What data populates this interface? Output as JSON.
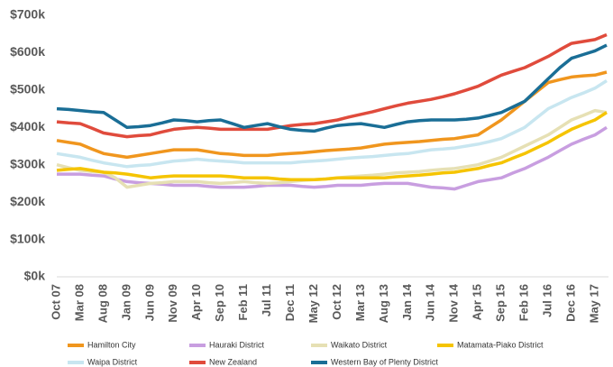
{
  "chart_data": {
    "type": "line",
    "categories": [
      "Oct 07",
      null,
      "Mar 08",
      null,
      "Aug 08",
      null,
      "Jan 09",
      null,
      "Jun 09",
      null,
      "Nov 09",
      null,
      "Apr 10",
      null,
      "Sep 10",
      null,
      "Feb 11",
      null,
      "Jul 11",
      null,
      "Dec 11",
      null,
      "May 12",
      null,
      "Oct 12",
      null,
      "Mar 13",
      null,
      "Aug 13",
      null,
      "Jan 14",
      null,
      "Jun 14",
      null,
      "Nov 14",
      null,
      "Apr 15",
      null,
      "Sep 15",
      null,
      "Feb 16",
      null,
      "Jul 16",
      null,
      "Dec 16",
      null,
      "May 17",
      null
    ],
    "ylim": [
      0,
      700
    ],
    "yticks": [
      {
        "value": 0,
        "label": "$0k"
      },
      {
        "value": 100,
        "label": "$100k"
      },
      {
        "value": 200,
        "label": "$200k"
      },
      {
        "value": 300,
        "label": "$300k"
      },
      {
        "value": 400,
        "label": "$400k"
      },
      {
        "value": 500,
        "label": "$500k"
      },
      {
        "value": 600,
        "label": "$600k"
      },
      {
        "value": 700,
        "label": "$700k"
      }
    ],
    "grid": false,
    "series": [
      {
        "name": "Hamilton City",
        "color": "#f0961e",
        "values": [
          365,
          360,
          355,
          342,
          330,
          325,
          320,
          325,
          330,
          335,
          340,
          340,
          340,
          335,
          330,
          328,
          325,
          325,
          325,
          328,
          330,
          332,
          335,
          338,
          340,
          342,
          345,
          350,
          355,
          358,
          360,
          362,
          365,
          368,
          370,
          375,
          380,
          400,
          420,
          445,
          470,
          495,
          520,
          528,
          535,
          538,
          540,
          548
        ]
      },
      {
        "name": "Hauraki District",
        "color": "#c89ee0",
        "values": [
          275,
          275,
          275,
          272,
          270,
          262,
          255,
          252,
          250,
          248,
          245,
          245,
          245,
          242,
          240,
          240,
          240,
          242,
          245,
          245,
          245,
          242,
          240,
          242,
          245,
          245,
          245,
          248,
          250,
          250,
          250,
          245,
          240,
          238,
          235,
          245,
          255,
          260,
          265,
          278,
          290,
          305,
          320,
          338,
          355,
          368,
          380,
          400
        ]
      },
      {
        "name": "Waikato District",
        "color": "#e6e0b4",
        "values": [
          300,
          292,
          285,
          282,
          280,
          265,
          240,
          245,
          250,
          252,
          255,
          255,
          255,
          252,
          250,
          252,
          255,
          252,
          250,
          252,
          255,
          258,
          260,
          262,
          265,
          268,
          270,
          272,
          275,
          278,
          280,
          282,
          285,
          288,
          290,
          295,
          300,
          310,
          320,
          335,
          350,
          365,
          380,
          400,
          420,
          432,
          445,
          440
        ]
      },
      {
        "name": "Matamata-Piako District",
        "color": "#f5c400",
        "values": [
          285,
          288,
          290,
          285,
          280,
          278,
          275,
          270,
          265,
          268,
          270,
          270,
          270,
          270,
          270,
          268,
          265,
          265,
          265,
          262,
          260,
          260,
          260,
          262,
          265,
          265,
          265,
          265,
          265,
          268,
          270,
          272,
          275,
          278,
          280,
          285,
          290,
          298,
          305,
          318,
          330,
          345,
          360,
          378,
          395,
          408,
          420,
          440
        ]
      },
      {
        "name": "Waipa District",
        "color": "#c8e6f0",
        "values": [
          330,
          325,
          320,
          312,
          305,
          300,
          295,
          298,
          300,
          305,
          310,
          312,
          315,
          312,
          310,
          308,
          305,
          305,
          305,
          305,
          305,
          308,
          310,
          312,
          315,
          318,
          320,
          322,
          325,
          328,
          330,
          335,
          340,
          342,
          345,
          350,
          355,
          362,
          370,
          385,
          400,
          425,
          450,
          465,
          480,
          492,
          505,
          525
        ]
      },
      {
        "name": "New Zealand",
        "color": "#e04b3c",
        "values": [
          415,
          412,
          410,
          398,
          385,
          380,
          375,
          378,
          380,
          388,
          395,
          398,
          400,
          398,
          395,
          395,
          395,
          395,
          395,
          400,
          405,
          408,
          410,
          415,
          420,
          428,
          435,
          442,
          450,
          458,
          465,
          470,
          475,
          482,
          490,
          500,
          510,
          525,
          540,
          550,
          560,
          575,
          590,
          608,
          625,
          630,
          635,
          648
        ]
      },
      {
        "name": "Western Bay of Plenty District",
        "color": "#1a6e96",
        "values": [
          450,
          448,
          445,
          442,
          440,
          420,
          400,
          402,
          405,
          412,
          420,
          418,
          415,
          418,
          420,
          410,
          400,
          405,
          410,
          402,
          395,
          392,
          390,
          398,
          405,
          408,
          410,
          405,
          400,
          408,
          415,
          418,
          420,
          420,
          420,
          422,
          425,
          432,
          440,
          455,
          470,
          500,
          530,
          560,
          585,
          595,
          605,
          620
        ]
      }
    ]
  }
}
